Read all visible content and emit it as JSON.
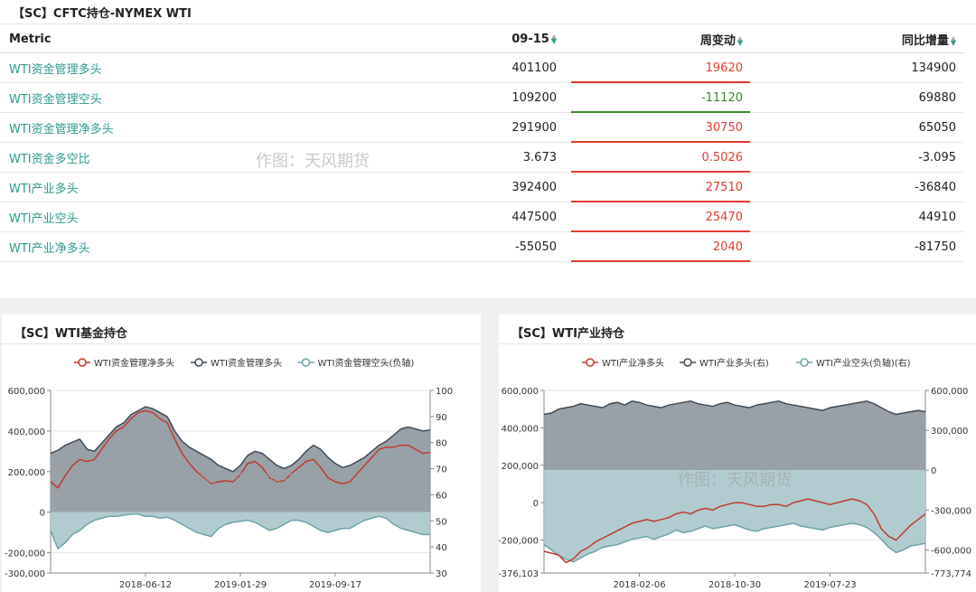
{
  "table": {
    "title": "【SC】CFTC持仓-NYMEX WTI",
    "headers": {
      "metric": "Metric",
      "date": "09-15",
      "weekly": "周变动",
      "yoy": "同比增量"
    },
    "rows": [
      {
        "metric": "WTI资金管理多头",
        "value": "401100",
        "weekly": "19620",
        "yoy": "134900",
        "dir": "up"
      },
      {
        "metric": "WTI资金管理空头",
        "value": "109200",
        "weekly": "-11120",
        "yoy": "69880",
        "dir": "down"
      },
      {
        "metric": "WTI资金管理净多头",
        "value": "291900",
        "weekly": "30750",
        "yoy": "65050",
        "dir": "up"
      },
      {
        "metric": "WTI资金多空比",
        "value": "3.673",
        "weekly": "0.5026",
        "yoy": "-3.095",
        "dir": "up"
      },
      {
        "metric": "WTI产业多头",
        "value": "392400",
        "weekly": "27510",
        "yoy": "-36840",
        "dir": "up"
      },
      {
        "metric": "WTI产业空头",
        "value": "447500",
        "weekly": "25470",
        "yoy": "44910",
        "dir": "up"
      },
      {
        "metric": "WTI产业净多头",
        "value": "-55050",
        "weekly": "2040",
        "yoy": "-81750",
        "dir": "up"
      }
    ],
    "watermark": "作图：天风期货"
  },
  "colors": {
    "up": "#e03b2e",
    "down": "#3a8a2a",
    "net": "#c0392b",
    "long": "#3f4a55",
    "short": "#6aa3a8",
    "long_fill": "#8e979f",
    "short_fill": "#a9c6cb"
  },
  "chart_data": [
    {
      "type": "area",
      "title": "【SC】WTI基金持仓",
      "watermark": "作图：天风期货",
      "legend": [
        "WTI资金管理净多头",
        "WTI资金管理多头",
        "WTI资金管理空头(负轴)"
      ],
      "legend_position": "top-center",
      "grid": true,
      "x_ticks": [
        "2018-06-12",
        "2019-01-29",
        "2019-09-17"
      ],
      "y_left": {
        "min": -300000,
        "max": 600000,
        "ticks": [
          "600,000",
          "400,000",
          "200,000",
          "0",
          "-200,000",
          "-300,000"
        ]
      },
      "y_right": {
        "min": 30,
        "max": 100,
        "ticks": [
          "100",
          "90",
          "80",
          "70",
          "60",
          "50",
          "40",
          "30"
        ]
      },
      "series": [
        {
          "name": "WTI资金管理多头",
          "values": [
            290000,
            305000,
            330000,
            345000,
            360000,
            310000,
            300000,
            340000,
            380000,
            420000,
            440000,
            480000,
            500000,
            520000,
            510000,
            490000,
            470000,
            400000,
            350000,
            320000,
            300000,
            280000,
            260000,
            230000,
            215000,
            200000,
            230000,
            280000,
            300000,
            290000,
            260000,
            230000,
            215000,
            230000,
            260000,
            300000,
            330000,
            310000,
            270000,
            240000,
            220000,
            230000,
            250000,
            270000,
            300000,
            330000,
            350000,
            380000,
            410000,
            420000,
            410000,
            400000,
            405000
          ]
        },
        {
          "name": "WTI资金管理空头(负轴)",
          "values": [
            -90000,
            -180000,
            -150000,
            -110000,
            -90000,
            -60000,
            -40000,
            -30000,
            -20000,
            -20000,
            -15000,
            -10000,
            -10000,
            -20000,
            -20000,
            -30000,
            -25000,
            -40000,
            -60000,
            -80000,
            -100000,
            -110000,
            -120000,
            -80000,
            -60000,
            -50000,
            -45000,
            -40000,
            -50000,
            -70000,
            -90000,
            -80000,
            -60000,
            -40000,
            -40000,
            -50000,
            -70000,
            -90000,
            -100000,
            -90000,
            -80000,
            -80000,
            -60000,
            -40000,
            -30000,
            -20000,
            -30000,
            -60000,
            -80000,
            -90000,
            -100000,
            -110000,
            -110000
          ]
        },
        {
          "name": "WTI资金管理净多头",
          "values": [
            150000,
            120000,
            180000,
            230000,
            260000,
            250000,
            260000,
            310000,
            360000,
            400000,
            420000,
            460000,
            490000,
            500000,
            490000,
            460000,
            440000,
            360000,
            290000,
            240000,
            200000,
            170000,
            140000,
            150000,
            155000,
            150000,
            185000,
            240000,
            250000,
            220000,
            170000,
            150000,
            155000,
            190000,
            220000,
            250000,
            260000,
            220000,
            170000,
            150000,
            140000,
            150000,
            190000,
            230000,
            270000,
            310000,
            320000,
            320000,
            330000,
            330000,
            310000,
            290000,
            295000
          ]
        }
      ]
    },
    {
      "type": "area",
      "title": "【SC】WTI产业持仓",
      "watermark": "作图：天风期货",
      "legend": [
        "WTI产业净多头",
        "WTI产业多头(右)",
        "WTI产业空头(负轴)(右)"
      ],
      "legend_position": "top-center",
      "grid": true,
      "x_ticks": [
        "2018-02-06",
        "2018-10-30",
        "2019-07-23"
      ],
      "y_left": {
        "min": -376103,
        "max": 600000,
        "ticks": [
          "600,000",
          "400,000",
          "200,000",
          "0",
          "-200,000",
          "-376,103"
        ]
      },
      "y_right": {
        "min": -773774,
        "max": 600000,
        "ticks": [
          "600,000",
          "300,000",
          "0",
          "-300,000",
          "-600,000",
          "-773,774"
        ]
      },
      "series": [
        {
          "name": "WTI产业多头(右)",
          "values": [
            420000,
            430000,
            460000,
            470000,
            480000,
            500000,
            490000,
            480000,
            470000,
            500000,
            510000,
            490000,
            520000,
            510000,
            490000,
            480000,
            470000,
            490000,
            500000,
            510000,
            520000,
            500000,
            490000,
            480000,
            500000,
            510000,
            490000,
            480000,
            470000,
            490000,
            500000,
            510000,
            520000,
            500000,
            490000,
            480000,
            470000,
            460000,
            450000,
            470000,
            480000,
            490000,
            500000,
            510000,
            520000,
            500000,
            470000,
            440000,
            420000,
            430000,
            440000,
            450000,
            440000
          ]
        },
        {
          "name": "WTI产业空头(负轴)(右)",
          "values": [
            -560000,
            -600000,
            -640000,
            -670000,
            -690000,
            -660000,
            -630000,
            -610000,
            -580000,
            -570000,
            -560000,
            -540000,
            -520000,
            -510000,
            -500000,
            -520000,
            -500000,
            -480000,
            -450000,
            -470000,
            -460000,
            -440000,
            -420000,
            -440000,
            -430000,
            -420000,
            -410000,
            -430000,
            -450000,
            -460000,
            -440000,
            -430000,
            -420000,
            -410000,
            -400000,
            -420000,
            -430000,
            -440000,
            -450000,
            -430000,
            -420000,
            -410000,
            -400000,
            -410000,
            -430000,
            -470000,
            -520000,
            -580000,
            -620000,
            -600000,
            -570000,
            -560000,
            -550000
          ]
        },
        {
          "name": "WTI产业净多头",
          "values": [
            -260000,
            -270000,
            -280000,
            -320000,
            -300000,
            -260000,
            -240000,
            -210000,
            -190000,
            -170000,
            -150000,
            -130000,
            -110000,
            -100000,
            -90000,
            -100000,
            -90000,
            -80000,
            -60000,
            -50000,
            -60000,
            -40000,
            -30000,
            -40000,
            -20000,
            -10000,
            0,
            0,
            -10000,
            -20000,
            -20000,
            -10000,
            -10000,
            -20000,
            0,
            10000,
            20000,
            10000,
            0,
            -10000,
            0,
            10000,
            20000,
            10000,
            -10000,
            -60000,
            -140000,
            -180000,
            -200000,
            -160000,
            -120000,
            -90000,
            -60000
          ]
        }
      ]
    }
  ]
}
